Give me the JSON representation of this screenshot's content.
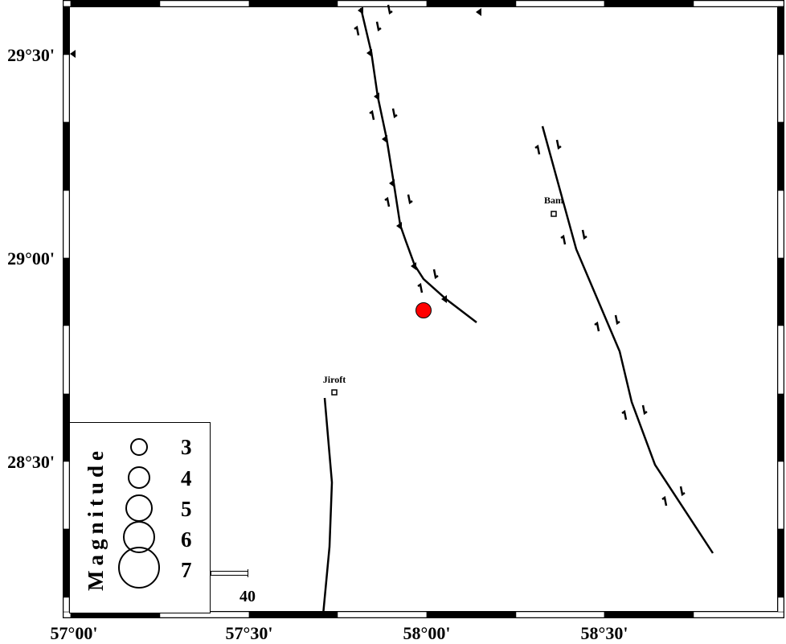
{
  "map": {
    "x_ticks": [
      "57°00'",
      "57°30'",
      "58°00'",
      "58°30'"
    ],
    "y_ticks": [
      "29°30'",
      "29°00'",
      "28°30'"
    ],
    "cities": [
      {
        "name": "Bam"
      },
      {
        "name": "Jiroft"
      }
    ],
    "epicenter_color": "#ff0000"
  },
  "legend": {
    "title": "Magnitude",
    "magnitudes": [
      "3",
      "4",
      "5",
      "6",
      "7"
    ]
  },
  "scale_bar": {
    "label": "40"
  }
}
